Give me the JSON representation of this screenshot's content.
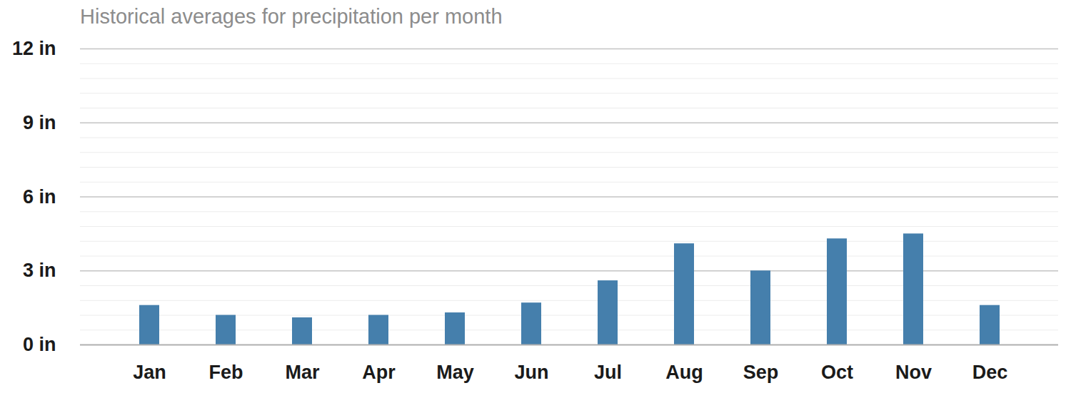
{
  "chart_data": {
    "type": "bar",
    "title": "Historical averages for precipitation per month",
    "categories": [
      "Jan",
      "Feb",
      "Mar",
      "Apr",
      "May",
      "Jun",
      "Jul",
      "Aug",
      "Sep",
      "Oct",
      "Nov",
      "Dec"
    ],
    "values": [
      1.6,
      1.2,
      1.1,
      1.2,
      1.3,
      1.7,
      2.6,
      4.1,
      3.0,
      4.3,
      4.5,
      1.6
    ],
    "color": "#457fac",
    "ylim": [
      0,
      12
    ],
    "yticks": [
      {
        "value": 0,
        "label": "0 in"
      },
      {
        "value": 3,
        "label": "3 in"
      },
      {
        "value": 6,
        "label": "6 in"
      },
      {
        "value": 9,
        "label": "9 in"
      },
      {
        "value": 12,
        "label": "12 in"
      }
    ],
    "grid": true
  }
}
